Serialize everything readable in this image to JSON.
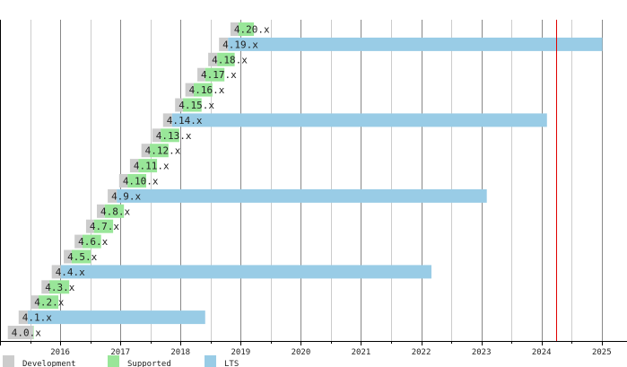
{
  "chart_data": {
    "type": "gantt",
    "title": "",
    "xlabel": "",
    "ylabel": "",
    "xlim": [
      2015.0,
      2025.42
    ],
    "x_ticks": [
      "2016",
      "2017",
      "2018",
      "2019",
      "2020",
      "2021",
      "2022",
      "2023",
      "2024",
      "2025"
    ],
    "grid": true,
    "today_marker": 2024.24,
    "colors": {
      "development": "#cccccc",
      "supported": "#99e699",
      "lts": "#99cce6",
      "today": "#e00000"
    },
    "legend": {
      "placement": "bottom-left",
      "entries": [
        {
          "key": "development",
          "label": "Development"
        },
        {
          "key": "supported",
          "label": "Supported"
        },
        {
          "key": "lts",
          "label": "LTS"
        }
      ]
    },
    "releases": [
      {
        "label": "4.0.x",
        "dev_start": 2015.13,
        "release": 2015.55,
        "eol": 2015.56,
        "lts": false
      },
      {
        "label": "4.1.x",
        "dev_start": 2015.31,
        "release": 2015.46,
        "eol": 2018.41,
        "lts": true
      },
      {
        "label": "4.2.x",
        "dev_start": 2015.51,
        "release": 2015.64,
        "eol": 2015.97,
        "lts": false
      },
      {
        "label": "4.3.x",
        "dev_start": 2015.69,
        "release": 2015.82,
        "eol": 2016.15,
        "lts": false
      },
      {
        "label": "4.4.x",
        "dev_start": 2015.86,
        "release": 2016.01,
        "eol": 2022.17,
        "lts": true
      },
      {
        "label": "4.5.x",
        "dev_start": 2016.06,
        "release": 2016.19,
        "eol": 2016.51,
        "lts": false
      },
      {
        "label": "4.6.x",
        "dev_start": 2016.24,
        "release": 2016.37,
        "eol": 2016.68,
        "lts": false
      },
      {
        "label": "4.7.x",
        "dev_start": 2016.43,
        "release": 2016.56,
        "eol": 2016.88,
        "lts": false
      },
      {
        "label": "4.8.x",
        "dev_start": 2016.61,
        "release": 2016.74,
        "eol": 2017.06,
        "lts": false
      },
      {
        "label": "4.9.x",
        "dev_start": 2016.79,
        "release": 2016.94,
        "eol": 2023.09,
        "lts": true
      },
      {
        "label": "4.10.x",
        "dev_start": 2016.98,
        "release": 2017.12,
        "eol": 2017.43,
        "lts": false
      },
      {
        "label": "4.11.x",
        "dev_start": 2017.16,
        "release": 2017.3,
        "eol": 2017.61,
        "lts": false
      },
      {
        "label": "4.12.x",
        "dev_start": 2017.35,
        "release": 2017.49,
        "eol": 2017.8,
        "lts": false
      },
      {
        "label": "4.13.x",
        "dev_start": 2017.53,
        "release": 2017.67,
        "eol": 2017.98,
        "lts": false
      },
      {
        "label": "4.14.x",
        "dev_start": 2017.71,
        "release": 2017.86,
        "eol": 2024.09,
        "lts": true
      },
      {
        "label": "4.15.x",
        "dev_start": 2017.91,
        "release": 2018.04,
        "eol": 2018.35,
        "lts": false
      },
      {
        "label": "4.16.x",
        "dev_start": 2018.08,
        "release": 2018.22,
        "eol": 2018.53,
        "lts": false
      },
      {
        "label": "4.17.x",
        "dev_start": 2018.28,
        "release": 2018.41,
        "eol": 2018.73,
        "lts": false
      },
      {
        "label": "4.18.x",
        "dev_start": 2018.46,
        "release": 2018.61,
        "eol": 2018.9,
        "lts": false
      },
      {
        "label": "4.19.x",
        "dev_start": 2018.64,
        "release": 2018.79,
        "eol": 2025.01,
        "lts": true
      },
      {
        "label": "4.20.x",
        "dev_start": 2018.83,
        "release": 2018.96,
        "eol": 2019.22,
        "lts": false
      }
    ]
  }
}
